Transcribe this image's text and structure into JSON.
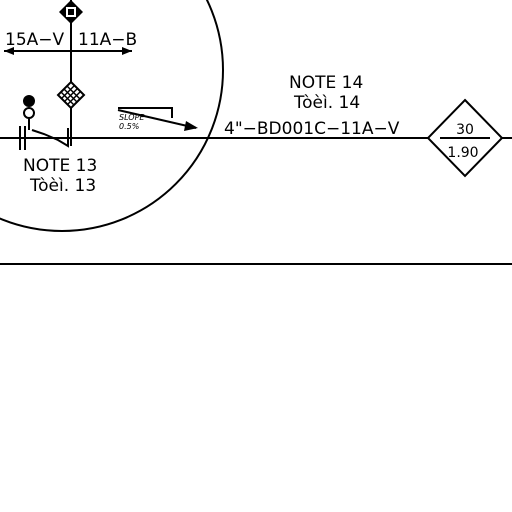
{
  "diagram": {
    "line_labels": {
      "left_spec": "15A−V",
      "right_spec": "11A−B",
      "main_line": "4\"−BD001C−11A−V"
    },
    "notes": {
      "note13_title": "NOTE 13",
      "note13_sub": "Tòèì. 13",
      "note14_title": "NOTE 14",
      "note14_sub": "Tòèì. 14"
    },
    "slope_tag": {
      "line1": "SLOPE",
      "line2": "0.5%"
    },
    "diamond_tag": {
      "top": "30",
      "bottom": "1.90"
    }
  }
}
